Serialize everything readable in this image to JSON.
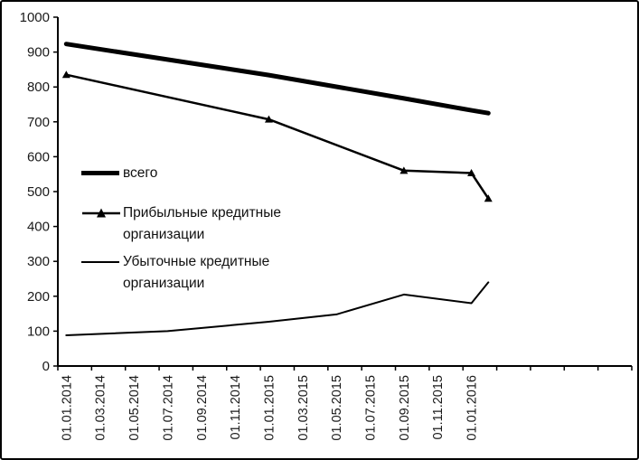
{
  "colors": {
    "line": "#000000",
    "text": "#1a1a1a",
    "background": "#ffffff"
  },
  "chart_data": {
    "type": "line",
    "title": "",
    "xlabel": "",
    "ylabel": "",
    "grid": false,
    "legend_position": "inside-left",
    "y_axis": {
      "min": 0,
      "max": 1000,
      "step": 100,
      "tick_labels": [
        "0",
        "100",
        "200",
        "300",
        "400",
        "500",
        "600",
        "700",
        "800",
        "900",
        "1000"
      ]
    },
    "x_axis": {
      "months_per_label": 2,
      "tick_labels": [
        "01.01.2014",
        "01.03.2014",
        "01.05.2014",
        "01.07.2014",
        "01.09.2014",
        "01.11.2014",
        "01.01.2015",
        "01.03.2015",
        "01.05.2015",
        "01.07.2015",
        "01.09.2015",
        "01.11.2015",
        "01.01.2016"
      ]
    },
    "series": [
      {
        "name": "всего",
        "key": "total",
        "style": "thick",
        "points": [
          {
            "m": 0,
            "v": 923
          },
          {
            "m": 12,
            "v": 834
          },
          {
            "m": 20,
            "v": 767
          },
          {
            "m": 24,
            "v": 733
          },
          {
            "m": 25,
            "v": 725
          }
        ]
      },
      {
        "name": "Прибыльные кредитные организации",
        "key": "profitable",
        "style": "marker",
        "points": [
          {
            "m": 0,
            "v": 835
          },
          {
            "m": 12,
            "v": 707
          },
          {
            "m": 20,
            "v": 560
          },
          {
            "m": 24,
            "v": 553
          },
          {
            "m": 25,
            "v": 480
          }
        ]
      },
      {
        "name": "Убыточные кредитные организации",
        "key": "unprofitable",
        "style": "thin",
        "points": [
          {
            "m": 0,
            "v": 88
          },
          {
            "m": 6,
            "v": 100
          },
          {
            "m": 12,
            "v": 127
          },
          {
            "m": 16,
            "v": 148
          },
          {
            "m": 20,
            "v": 205
          },
          {
            "m": 24,
            "v": 180
          },
          {
            "m": 25,
            "v": 240
          }
        ]
      }
    ]
  },
  "legend": {
    "items": [
      {
        "line1": "всего",
        "line2": ""
      },
      {
        "line1": "Прибыльные кредитные",
        "line2": "организации"
      },
      {
        "line1": "Убыточные кредитные",
        "line2": "организации"
      }
    ]
  }
}
